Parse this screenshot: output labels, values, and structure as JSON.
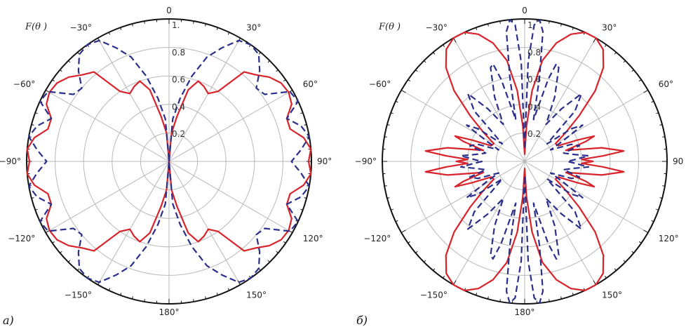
{
  "colors": {
    "series_red": "#d8232a",
    "series_blue": "#2b2f8a",
    "grid": "#b8b8b8",
    "frame": "#111111"
  },
  "chart_data": [
    {
      "type": "polar-line",
      "panel_label": "а)",
      "title": "F(θ )",
      "angular_tick_labels": [
        "0",
        "30°",
        "60°",
        "90°",
        "120°",
        "150°",
        "180°",
        "−150°",
        "−120°",
        "−90°",
        "−60°",
        "−30°"
      ],
      "radial_tick_labels": [
        "0.2",
        "0.4",
        "0.6",
        "0.8",
        "1."
      ],
      "rlim": [
        0,
        1
      ],
      "grid": true,
      "series": [
        {
          "color": "red",
          "style": "solid",
          "theta_deg": [
            0,
            5,
            10,
            15,
            20,
            25,
            30,
            35,
            40,
            45,
            50,
            55,
            60,
            65,
            70,
            75,
            80,
            85,
            90
          ],
          "r": [
            0.0,
            0.2,
            0.32,
            0.52,
            0.6,
            0.58,
            0.55,
            0.6,
            0.82,
            0.86,
            0.92,
            0.96,
            0.97,
            0.95,
            0.88,
            0.88,
            0.96,
            1.0,
            0.98
          ]
        },
        {
          "color": "blue",
          "style": "dashed",
          "theta_deg": [
            0,
            5,
            10,
            15,
            20,
            25,
            30,
            35,
            40,
            45,
            50,
            55,
            60,
            65,
            70,
            75,
            80,
            85,
            90
          ],
          "r": [
            0.0,
            0.3,
            0.45,
            0.62,
            0.78,
            0.88,
            0.98,
            1.0,
            0.98,
            0.9,
            0.8,
            0.82,
            0.98,
            1.0,
            0.88,
            0.96,
            1.0,
            0.93,
            0.86
          ]
        }
      ]
    },
    {
      "type": "polar-line",
      "panel_label": "б)",
      "title": "F(θ )",
      "angular_tick_labels": [
        "0",
        "30°",
        "60°",
        "90",
        "120°",
        "150°",
        "180°",
        "−150°",
        "−120°",
        "−90°",
        "−60°",
        "−30°"
      ],
      "radial_tick_labels": [
        "0.2",
        "0.4",
        "0.6",
        "0.8",
        "1."
      ],
      "rlim": [
        0,
        1
      ],
      "grid": true,
      "series": [
        {
          "color": "red",
          "style": "solid",
          "theta_deg": [
            0,
            3,
            6,
            10,
            15,
            20,
            25,
            30,
            35,
            40,
            45,
            50,
            55,
            60,
            65,
            68,
            70,
            72,
            75,
            80,
            84,
            86,
            88,
            90
          ],
          "r": [
            0.05,
            0.25,
            0.5,
            0.72,
            0.86,
            0.95,
            1.0,
            1.0,
            0.96,
            0.86,
            0.7,
            0.5,
            0.35,
            0.25,
            0.26,
            0.4,
            0.52,
            0.45,
            0.3,
            0.55,
            0.7,
            0.55,
            0.4,
            0.48
          ]
        },
        {
          "color": "blue",
          "style": "dashed",
          "theta_deg": [
            0,
            2,
            4,
            6,
            8,
            10,
            12,
            14,
            16,
            18,
            20,
            25,
            30,
            35,
            40,
            45,
            48,
            52,
            55,
            58,
            62,
            66,
            70,
            74,
            78,
            82,
            85,
            88,
            90
          ],
          "r": [
            0.1,
            0.7,
            0.96,
            1.0,
            0.92,
            0.6,
            0.3,
            0.4,
            0.6,
            0.72,
            0.7,
            0.5,
            0.3,
            0.45,
            0.62,
            0.5,
            0.3,
            0.2,
            0.4,
            0.48,
            0.3,
            0.2,
            0.35,
            0.4,
            0.28,
            0.35,
            0.45,
            0.35,
            0.3
          ]
        }
      ]
    }
  ]
}
